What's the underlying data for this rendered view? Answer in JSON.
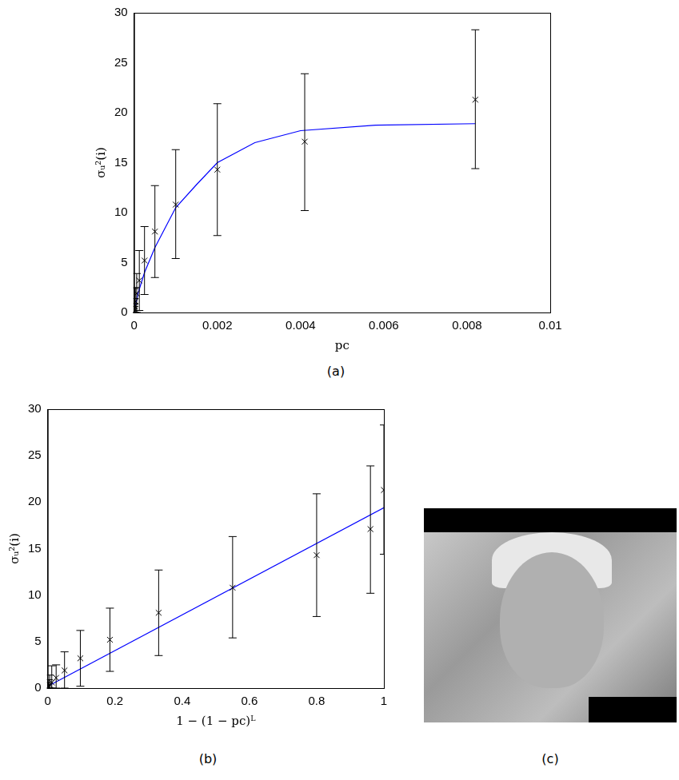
{
  "chart_data": [
    {
      "type": "scatter",
      "panel_label": "(a)",
      "x_label": "pc",
      "y_label": "σᵤ²(i)",
      "xlim": [
        0,
        0.01
      ],
      "xticks": [
        0,
        0.002,
        0.004,
        0.006,
        0.008,
        0.01
      ],
      "ylim": [
        0,
        30
      ],
      "yticks": [
        0,
        5,
        10,
        15,
        20,
        25,
        30
      ],
      "grid": false,
      "series": [
        {
          "type": "scatter",
          "color": "#000000",
          "marker": "x",
          "x": [
            2e-06,
            3.9e-06,
            7.8e-06,
            1.5e-05,
            3e-05,
            6.25e-05,
            0.000125,
            0.00025,
            0.0005,
            0.001,
            0.002,
            0.0041,
            0.0082
          ],
          "values": [
            0.1,
            0.2,
            0.35,
            0.6,
            1.1,
            1.9,
            3.2,
            5.2,
            8.1,
            10.8,
            14.3,
            17.1,
            21.3
          ],
          "lower": [
            0,
            0,
            0,
            0,
            0,
            0,
            0.2,
            1.8,
            3.5,
            5.4,
            7.7,
            10.2,
            14.4
          ],
          "upper": [
            0.6,
            0.9,
            1.4,
            2.4,
            2.5,
            3.9,
            6.2,
            8.6,
            12.7,
            16.3,
            20.9,
            23.9,
            28.3
          ]
        },
        {
          "type": "line",
          "color": "#0000ff",
          "line_style": "solid",
          "x": [
            0,
            0.0001,
            0.00025,
            0.0005,
            0.001,
            0.0015,
            0.002,
            0.0029,
            0.004,
            0.0058,
            0.0082
          ],
          "values": [
            0,
            2,
            4,
            6.5,
            10.5,
            12.8,
            15,
            17,
            18.2,
            18.75,
            18.9
          ]
        }
      ]
    },
    {
      "type": "scatter",
      "panel_label": "(b)",
      "x_label": "1 − (1 − pc)ᴸ",
      "y_label": "σᵤ²(i)",
      "xlim": [
        0,
        1
      ],
      "xticks": [
        0,
        0.2,
        0.4,
        0.6,
        0.8,
        1
      ],
      "ylim": [
        0,
        30
      ],
      "yticks": [
        0,
        5,
        10,
        15,
        20,
        25,
        30
      ],
      "grid": false,
      "series": [
        {
          "type": "scatter",
          "color": "#000000",
          "marker": "x",
          "x": [
            0.002,
            0.003,
            0.006,
            0.012,
            0.025,
            0.05,
            0.097,
            0.185,
            0.33,
            0.55,
            0.8,
            0.96,
            1
          ],
          "values": [
            0.1,
            0.2,
            0.35,
            0.6,
            1.1,
            1.9,
            3.2,
            5.2,
            8.1,
            10.8,
            14.3,
            17.1,
            21.3
          ],
          "lower": [
            0,
            0,
            0,
            0,
            0,
            0,
            0.2,
            1.8,
            3.5,
            5.4,
            7.7,
            10.2,
            14.4
          ],
          "upper": [
            0.6,
            0.9,
            1.4,
            2.4,
            2.5,
            3.9,
            6.2,
            8.6,
            12.7,
            16.3,
            20.9,
            23.9,
            28.3
          ]
        },
        {
          "type": "line",
          "color": "#0000ff",
          "line_style": "solid",
          "x": [
            0,
            1
          ],
          "values": [
            0.2,
            19.4
          ]
        }
      ]
    }
  ],
  "image": {
    "panel_label": "(c)"
  }
}
